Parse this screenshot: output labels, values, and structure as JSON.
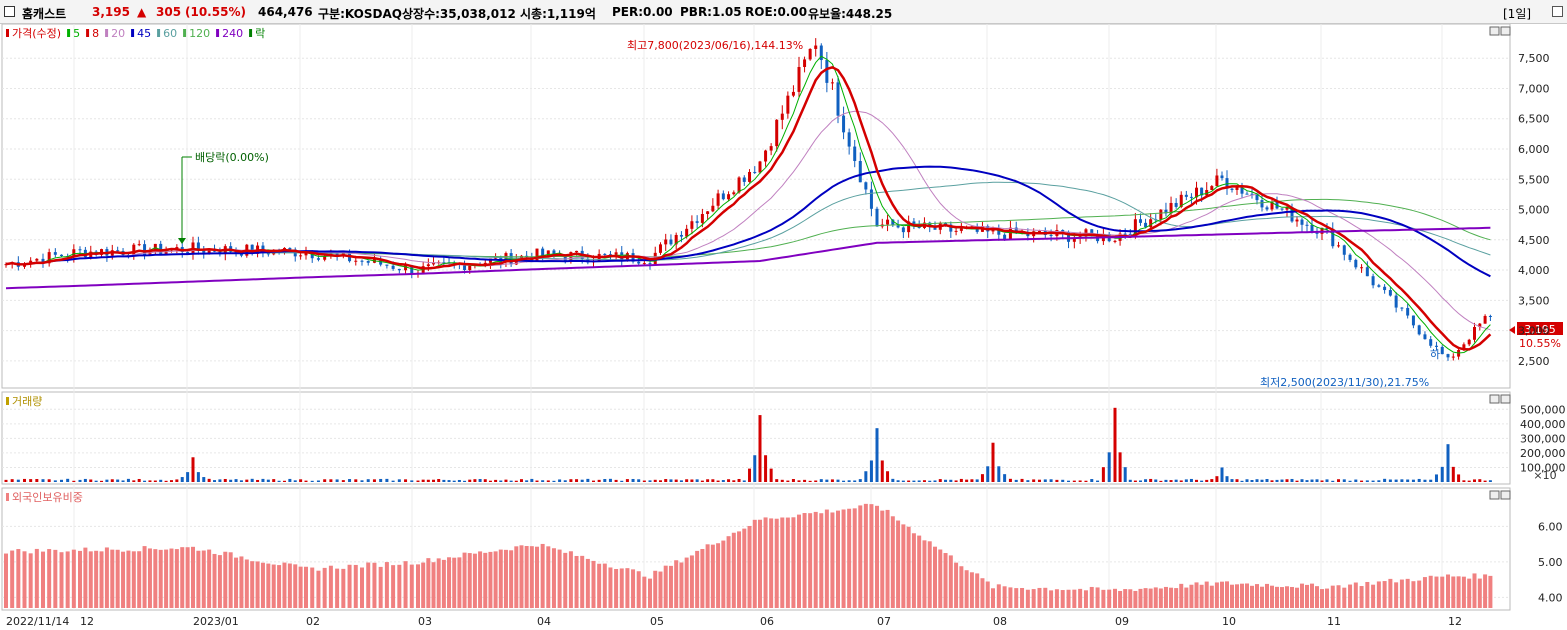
{
  "header": {
    "stock_name": "홈캐스트",
    "price": "3,195",
    "change_arrow": "▲",
    "change": "305",
    "change_pct": "(10.55%)",
    "volume": "464,476",
    "market": "구분:KOSDAQ",
    "shares": "상장수:35,038,012",
    "mktcap": "시총:1,119억",
    "per": "PER:0.00",
    "pbr": "PBR:1.05",
    "roe": "ROE:0.00",
    "float_ratio": "유보율:448.25",
    "period": "[1일]"
  },
  "price_panel": {
    "legend": [
      {
        "text": "가격(수정)",
        "color": "#d40000"
      },
      {
        "text": "5",
        "color": "#00b000"
      },
      {
        "text": "8",
        "color": "#d40000"
      },
      {
        "text": "20",
        "color": "#c080c0"
      },
      {
        "text": "45",
        "color": "#0000c0"
      },
      {
        "text": "60",
        "color": "#5aa0a0"
      },
      {
        "text": "120",
        "color": "#50b050"
      },
      {
        "text": "240",
        "color": "#8000c0"
      },
      {
        "text": "락",
        "color": "#008000"
      }
    ],
    "high_annotation": "최고7,800(2023/06/16),144.13%",
    "low_annotation": "최저2,500(2023/11/30),21.75%",
    "dividend_annotation": "배당락(0.00%)",
    "ha_marker": "하",
    "current_price_tag": "3,195",
    "current_pct_tag": "10.55%",
    "y_ticks": [
      "7,500",
      "7,000",
      "6,500",
      "6,000",
      "5,500",
      "5,000",
      "4,500",
      "4,000",
      "3,500",
      "3,000",
      "2,500"
    ]
  },
  "volume_panel": {
    "legend": "거래량",
    "y_ticks": [
      "500,000",
      "400,000",
      "300,000",
      "200,000",
      "100,000"
    ],
    "scale_note": "×10"
  },
  "foreign_panel": {
    "legend": "외국인보유비중",
    "y_ticks": [
      "6.00",
      "5.00",
      "4.00"
    ]
  },
  "x_axis": {
    "labels": [
      "2022/11/14",
      "12",
      "2023/01",
      "02",
      "03",
      "04",
      "05",
      "06",
      "07",
      "08",
      "09",
      "10",
      "11",
      "12"
    ]
  },
  "chart_data": {
    "type": "candlestick",
    "title": "홈캐스트",
    "price_range": [
      2200,
      7900
    ],
    "anchor_prices": [
      {
        "label": "2022/11/14",
        "price": 4100
      },
      {
        "label": "12",
        "price": 4300
      },
      {
        "label": "2023/01",
        "price": 4350
      },
      {
        "label": "02",
        "price": 4300
      },
      {
        "label": "03",
        "price": 4000
      },
      {
        "label": "04",
        "price": 4250
      },
      {
        "label": "05",
        "price": 4200
      },
      {
        "label": "06",
        "price": 5800
      },
      {
        "label": "2023/06/16 (high)",
        "price": 7800
      },
      {
        "label": "07",
        "price": 4750
      },
      {
        "label": "08",
        "price": 4600
      },
      {
        "label": "09",
        "price": 4550
      },
      {
        "label": "10",
        "price": 5500
      },
      {
        "label": "11",
        "price": 4600
      },
      {
        "label": "2023/11/30 (low)",
        "price": 2500
      },
      {
        "label": "12 (last)",
        "price": 3195
      }
    ],
    "volume_spikes": [
      {
        "label": "2023/01",
        "value": 170000
      },
      {
        "label": "06",
        "value": 460000
      },
      {
        "label": "07",
        "value": 370000
      },
      {
        "label": "08",
        "value": 270000
      },
      {
        "label": "09",
        "value": 510000
      },
      {
        "label": "10",
        "value": 100000
      },
      {
        "label": "12",
        "value": 260000
      }
    ],
    "foreign_ratio_range": [
      3.7,
      6.8
    ],
    "foreign_ratio_anchors": [
      {
        "label": "2022/11/14",
        "value": 5.3
      },
      {
        "label": "2023/01",
        "value": 5.4
      },
      {
        "label": "02",
        "value": 4.8
      },
      {
        "label": "03",
        "value": 5.0
      },
      {
        "label": "04",
        "value": 5.5
      },
      {
        "label": "05",
        "value": 4.6
      },
      {
        "label": "06",
        "value": 6.2
      },
      {
        "label": "07",
        "value": 6.6
      },
      {
        "label": "08",
        "value": 4.3
      },
      {
        "label": "09",
        "value": 4.2
      },
      {
        "label": "10",
        "value": 4.4
      },
      {
        "label": "11",
        "value": 4.3
      },
      {
        "label": "12",
        "value": 4.6
      }
    ],
    "colors": {
      "up": "#d40000",
      "down": "#1060c0",
      "ma5": "#00b000",
      "ma8": "#d40000",
      "ma20": "#c080c0",
      "ma45": "#0000c0",
      "ma60": "#5aa0a0",
      "ma120": "#50b050",
      "ma240": "#8000c0",
      "foreign": "#f08080"
    }
  }
}
